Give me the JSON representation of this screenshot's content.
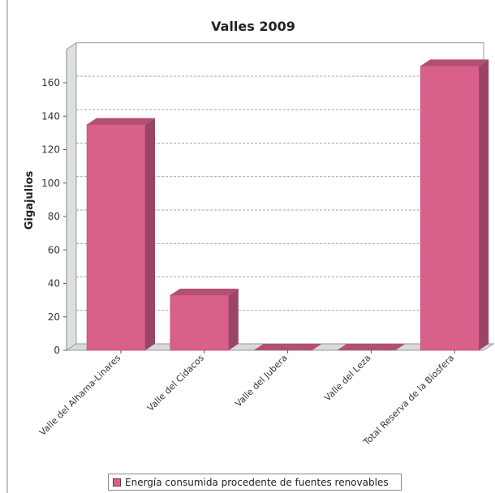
{
  "chart_data": {
    "type": "bar",
    "title": "Valles 2009",
    "ylabel": "Gigajulios",
    "xlabel": "",
    "categories": [
      "Valle del Alhama-Linares",
      "Valle del Cidacos",
      "Valle del Jubera",
      "Valle del Leza",
      "Total Reserva de la Biosfera"
    ],
    "series": [
      {
        "name": "Energía consumida procedente de fuentes renovables",
        "values": [
          135,
          33,
          0,
          0,
          170
        ]
      }
    ],
    "ylim": [
      0,
      180
    ],
    "yticks": [
      0,
      20,
      40,
      60,
      80,
      100,
      120,
      140,
      160
    ],
    "grid": true,
    "legend_position": "bottom",
    "colors": {
      "bar_front": "#d8608a",
      "bar_top": "#b24f73",
      "bar_side": "#9b4566",
      "wall": "#dde0e2",
      "floor": "#d9d9d9"
    }
  }
}
